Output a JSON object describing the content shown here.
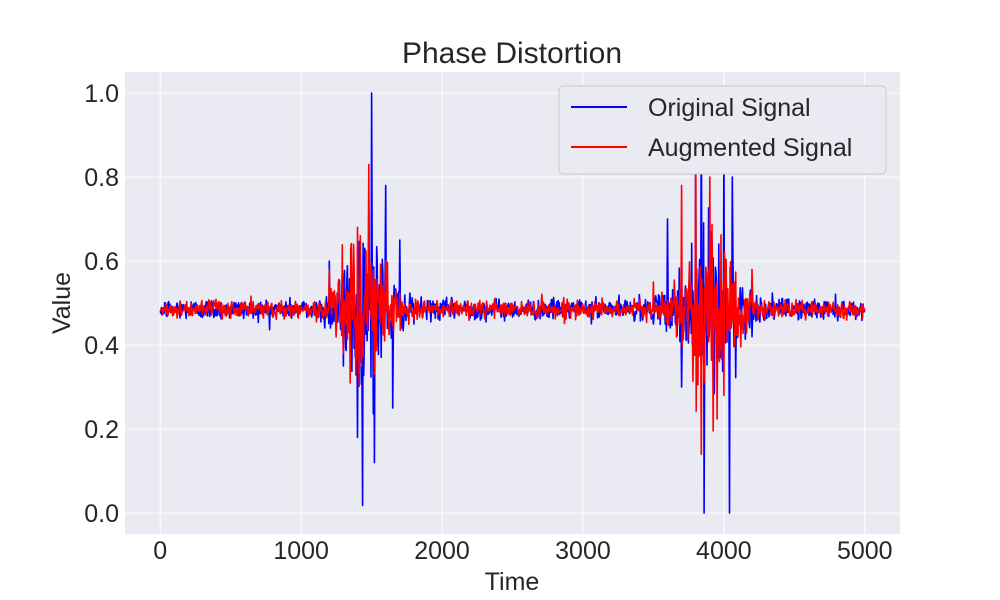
{
  "chart_data": {
    "type": "line",
    "title": "Phase Distortion",
    "xlabel": "Time",
    "ylabel": "Value",
    "xlim": [
      -250,
      5250
    ],
    "ylim": [
      -0.05,
      1.05
    ],
    "xticks": [
      "0",
      "1000",
      "2000",
      "3000",
      "4000",
      "5000"
    ],
    "yticks": [
      "0.0",
      "0.2",
      "0.4",
      "0.6",
      "0.8",
      "1.0"
    ],
    "grid": true,
    "legend_position": "top-right",
    "series": [
      {
        "name": "Original Signal",
        "color": "#0000ff",
        "description_points": {
          "x": [
            0,
            1000,
            1200,
            1300,
            1400,
            1480,
            1500,
            1520,
            1600,
            1650,
            1700,
            1800,
            2000,
            3000,
            3400,
            3600,
            3700,
            3800,
            3840,
            3860,
            4000,
            4040,
            4060,
            4200,
            4400,
            5000
          ],
          "y": [
            0.48,
            0.49,
            0.6,
            0.35,
            0.18,
            0.72,
            1.0,
            0.12,
            0.78,
            0.25,
            0.65,
            0.45,
            0.49,
            0.49,
            0.52,
            0.7,
            0.3,
            0.88,
            0.98,
            0.0,
            0.88,
            0.0,
            0.8,
            0.42,
            0.5,
            0.48
          ]
        }
      },
      {
        "name": "Augmented Signal",
        "color": "#ff0000",
        "description_points": {
          "x": [
            0,
            1000,
            1200,
            1300,
            1400,
            1480,
            1520,
            1600,
            1800,
            2000,
            3000,
            3500,
            3700,
            3800,
            3840,
            3900,
            4000,
            4200,
            4400,
            5000
          ],
          "y": [
            0.48,
            0.49,
            0.58,
            0.38,
            0.68,
            0.83,
            0.33,
            0.6,
            0.46,
            0.48,
            0.48,
            0.55,
            0.78,
            0.88,
            0.14,
            0.8,
            0.28,
            0.58,
            0.49,
            0.48
          ]
        }
      }
    ]
  }
}
